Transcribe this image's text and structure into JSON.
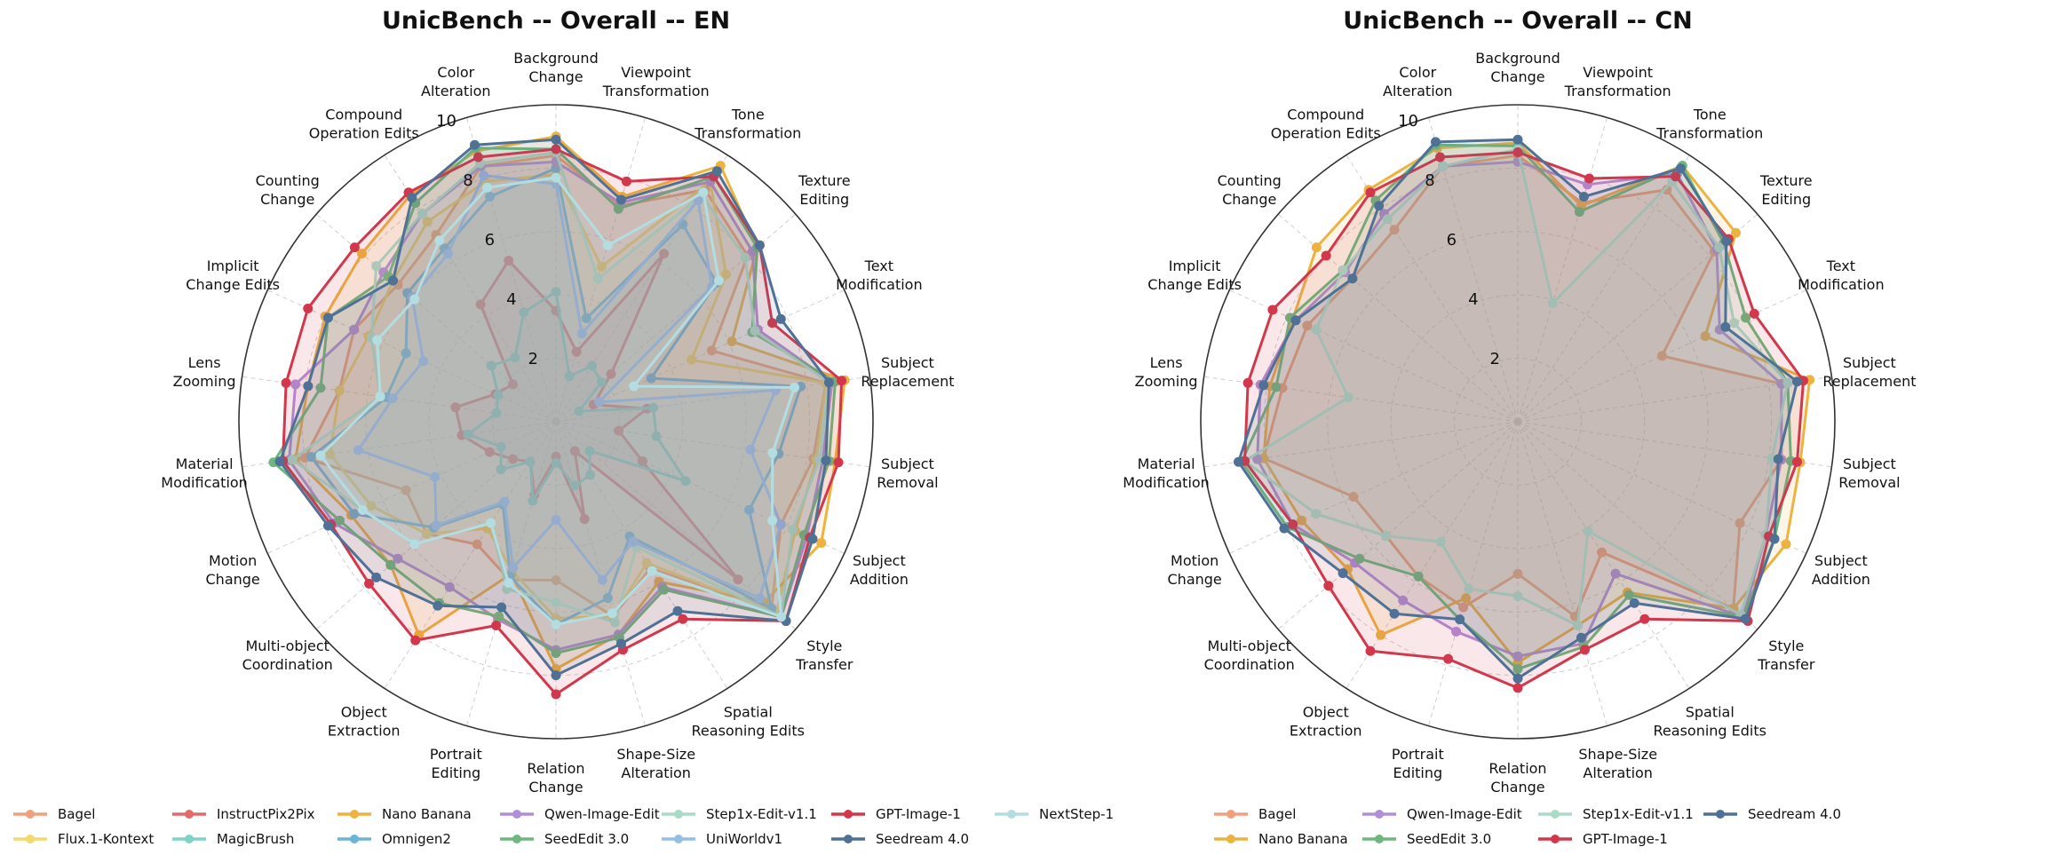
{
  "chart_data": [
    {
      "type": "radar",
      "title": "UnicBench -- Overall -- EN",
      "categories": [
        "Background Change",
        "Viewpoint Transformation",
        "Tone Transformation",
        "Texture Editing",
        "Text Modification",
        "Subject Replacement",
        "Subject Removal",
        "Subject Addition",
        "Style Transfer",
        "Spatial Reasoning Edits",
        "Shape-Size Alteration",
        "Relation Change",
        "Portrait Editing",
        "Object Extraction",
        "Multi-object Coordination",
        "Motion Change",
        "Material Modification",
        "Lens Zooming",
        "Implicit Change Edits",
        "Counting Change",
        "Compound Operation Edits",
        "Color Alteration"
      ],
      "r_ticks": [
        2,
        4,
        6,
        8,
        10
      ],
      "rlim": [
        0,
        10
      ],
      "grid": true,
      "legend_placement": "bottom",
      "series": [
        {
          "name": "Bagel",
          "color": "#F0A07C",
          "values": [
            8.4,
            7.1,
            8.7,
            8.0,
            5.4,
            8.6,
            8.2,
            7.8,
            9.0,
            5.5,
            6.4,
            5.0,
            5.2,
            4.6,
            5.4,
            5.2,
            8.0,
            6.9,
            7.0,
            6.6,
            7.0,
            8.4
          ]
        },
        {
          "name": "Flux.1-Kontext",
          "color": "#F3D86A",
          "values": [
            7.8,
            5.1,
            9.0,
            7.1,
            4.7,
            8.6,
            8.3,
            8.3,
            9.2,
            5.3,
            6.4,
            6.2,
            4.9,
            4.0,
            5.4,
            6.4,
            7.2,
            6.9,
            6.5,
            6.8,
            7.5,
            7.9
          ]
        },
        {
          "name": "InstructPix2Pix",
          "color": "#E46A6A",
          "values": [
            3.5,
            2.3,
            6.3,
            2.3,
            1.3,
            2.9,
            2.0,
            3.0,
            7.6,
            1.1,
            3.2,
            1.1,
            2.4,
            1.5,
            1.8,
            2.3,
            3.0,
            3.2,
            2.1,
            1.8,
            4.4,
            5.3
          ]
        },
        {
          "name": "MagicBrush",
          "color": "#7DD3C6",
          "values": [
            4.1,
            1.5,
            2.1,
            1.9,
            0.8,
            3.1,
            3.2,
            4.5,
            1.4,
            2.0,
            2.1,
            1.3,
            2.6,
            1.5,
            2.3,
            1.9,
            2.8,
            1.9,
            2.0,
            2.7,
            2.4,
            3.6
          ]
        },
        {
          "name": "Nano Banana",
          "color": "#EDB33E",
          "values": [
            9.0,
            7.4,
            9.6,
            8.4,
            6.1,
            9.2,
            8.9,
            9.2,
            8.7,
            6.0,
            7.0,
            7.8,
            5.0,
            8.0,
            6.9,
            7.1,
            8.3,
            7.9,
            8.0,
            8.1,
            8.5,
            8.9
          ]
        },
        {
          "name": "Omnigen2",
          "color": "#6AB4D8",
          "values": [
            8.0,
            3.4,
            7.4,
            6.7,
            3.3,
            7.8,
            7.1,
            6.7,
            9.0,
            4.3,
            5.8,
            6.4,
            5.1,
            3.1,
            5.1,
            7.0,
            7.8,
            5.4,
            5.2,
            6.2,
            6.5,
            7.4
          ]
        },
        {
          "name": "Qwen-Image-Edit",
          "color": "#B08FD8",
          "values": [
            8.2,
            7.2,
            9.0,
            8.2,
            7.0,
            8.8,
            8.5,
            8.7,
            9.4,
            6.2,
            7.0,
            7.2,
            6.5,
            6.2,
            6.6,
            7.7,
            8.5,
            8.3,
            7.0,
            7.2,
            7.8,
            8.4
          ]
        },
        {
          "name": "SeedEdit 3.0",
          "color": "#6DB87F",
          "values": [
            8.6,
            7.0,
            9.2,
            8.4,
            6.8,
            8.9,
            8.7,
            8.6,
            9.4,
            6.3,
            7.1,
            7.3,
            6.4,
            6.8,
            6.9,
            7.5,
            9.0,
            7.5,
            7.9,
            7.0,
            8.2,
            9.0
          ]
        },
        {
          "name": "Step1x-Edit-v1.1",
          "color": "#A8DCC8",
          "values": [
            8.5,
            4.7,
            8.5,
            7.9,
            6.9,
            8.7,
            8.4,
            8.2,
            9.4,
            4.7,
            6.6,
            5.7,
            5.5,
            3.8,
            5.9,
            6.7,
            8.4,
            5.6,
            6.4,
            7.5,
            7.8,
            8.5
          ]
        },
        {
          "name": "UniWorldv1",
          "color": "#93BFE6",
          "values": [
            7.5,
            2.9,
            8.3,
            6.5,
            1.5,
            7.0,
            6.2,
            7.8,
            8.5,
            4.5,
            5.2,
            3.1,
            4.8,
            3.0,
            5.0,
            4.2,
            6.3,
            5.2,
            4.6,
            6.0,
            6.3,
            8.1
          ]
        },
        {
          "name": "GPT-Image-1",
          "color": "#D2374B",
          "values": [
            8.6,
            7.9,
            9.2,
            8.5,
            7.5,
            9.1,
            9.0,
            8.8,
            9.6,
            7.4,
            7.5,
            8.6,
            6.7,
            8.2,
            7.8,
            7.8,
            8.7,
            8.6,
            8.6,
            8.4,
            8.6,
            8.7
          ]
        },
        {
          "name": "Seedream 4.0",
          "color": "#4F7196",
          "values": [
            8.9,
            7.3,
            9.4,
            8.5,
            7.8,
            8.7,
            8.6,
            8.9,
            9.6,
            7.1,
            7.3,
            8.0,
            6.1,
            6.9,
            7.5,
            7.9,
            8.8,
            7.9,
            7.9,
            6.8,
            8.4,
            9.1
          ]
        },
        {
          "name": "NextStep-1",
          "color": "#B3DDE0",
          "values": [
            7.7,
            5.8,
            8.6,
            6.8,
            2.7,
            7.6,
            6.9,
            7.5,
            9.4,
            5.6,
            6.3,
            6.4,
            5.3,
            3.8,
            5.9,
            6.7,
            7.5,
            5.6,
            6.2,
            5.9,
            6.8,
            7.7
          ]
        }
      ]
    },
    {
      "type": "radar",
      "title": "UnicBench -- Overall -- CN",
      "categories": [
        "Background Change",
        "Viewpoint Transformation",
        "Tone Transformation",
        "Texture Editing",
        "Text Modification",
        "Subject Replacement",
        "Subject Removal",
        "Subject Addition",
        "Style Transfer",
        "Spatial Reasoning Edits",
        "Shape-Size Alteration",
        "Relation Change",
        "Portrait Editing",
        "Object Extraction",
        "Multi-object Coordination",
        "Motion Change",
        "Material Modification",
        "Lens Zooming",
        "Implicit Change Edits",
        "Counting Change",
        "Compound Operation Edits",
        "Color Alteration"
      ],
      "r_ticks": [
        2,
        4,
        6,
        8,
        10
      ],
      "rlim": [
        0,
        10
      ],
      "grid": true,
      "legend_placement": "bottom",
      "series": [
        {
          "name": "Bagel",
          "color": "#F0A07C",
          "values": [
            8.4,
            7.2,
            8.7,
            8.2,
            5.0,
            8.4,
            8.4,
            7.7,
            9.0,
            4.9,
            6.4,
            4.8,
            6.1,
            5.8,
            5.5,
            5.7,
            8.1,
            7.5,
            7.3,
            6.9,
            7.2,
            8.4
          ]
        },
        {
          "name": "Nano Banana",
          "color": "#EDB33E",
          "values": [
            8.8,
            7.1,
            9.6,
            9.1,
            6.5,
            9.3,
            9.0,
            9.3,
            9.0,
            6.4,
            6.7,
            7.6,
            5.8,
            8.0,
            7.1,
            7.5,
            8.1,
            7.9,
            7.8,
            8.4,
            8.7,
            9.0
          ]
        },
        {
          "name": "Qwen-Image-Edit",
          "color": "#B08FD8",
          "values": [
            8.2,
            7.8,
            9.3,
            8.3,
            7.0,
            8.4,
            8.4,
            8.6,
            9.4,
            5.7,
            7.3,
            7.4,
            6.9,
            6.7,
            6.8,
            7.8,
            8.3,
            8.2,
            7.7,
            7.2,
            7.8,
            8.4
          ]
        },
        {
          "name": "SeedEdit 3.0",
          "color": "#6DB87F",
          "values": [
            8.7,
            6.9,
            9.6,
            8.6,
            7.9,
            8.6,
            8.7,
            8.9,
            9.4,
            6.5,
            7.4,
            7.8,
            6.5,
            5.8,
            6.6,
            8.0,
            8.8,
            7.7,
            7.9,
            7.3,
            8.3,
            9.1
          ]
        },
        {
          "name": "Step1x-Edit-v1.1",
          "color": "#A8DCC8",
          "values": [
            8.6,
            3.9,
            9.0,
            8.4,
            7.5,
            8.6,
            8.1,
            8.6,
            9.3,
            4.1,
            6.7,
            5.5,
            5.5,
            4.5,
            5.5,
            7.0,
            8.7,
            5.4,
            7.0,
            7.3,
            7.6,
            8.4
          ]
        },
        {
          "name": "GPT-Image-1",
          "color": "#D2374B",
          "values": [
            8.5,
            8.0,
            9.2,
            8.8,
            8.2,
            9.1,
            8.9,
            8.7,
            9.6,
            7.4,
            7.5,
            8.4,
            7.8,
            8.6,
            7.9,
            7.8,
            8.7,
            8.6,
            8.5,
            8.0,
            8.6,
            8.7
          ]
        },
        {
          "name": "Seedream 4.0",
          "color": "#4F7196",
          "values": [
            8.9,
            7.4,
            9.5,
            8.7,
            7.2,
            8.9,
            8.3,
            8.9,
            9.5,
            6.8,
            7.1,
            8.1,
            6.5,
            7.2,
            7.3,
            8.1,
            8.9,
            8.1,
            7.7,
            6.9,
            8.1,
            9.2
          ]
        }
      ]
    }
  ]
}
